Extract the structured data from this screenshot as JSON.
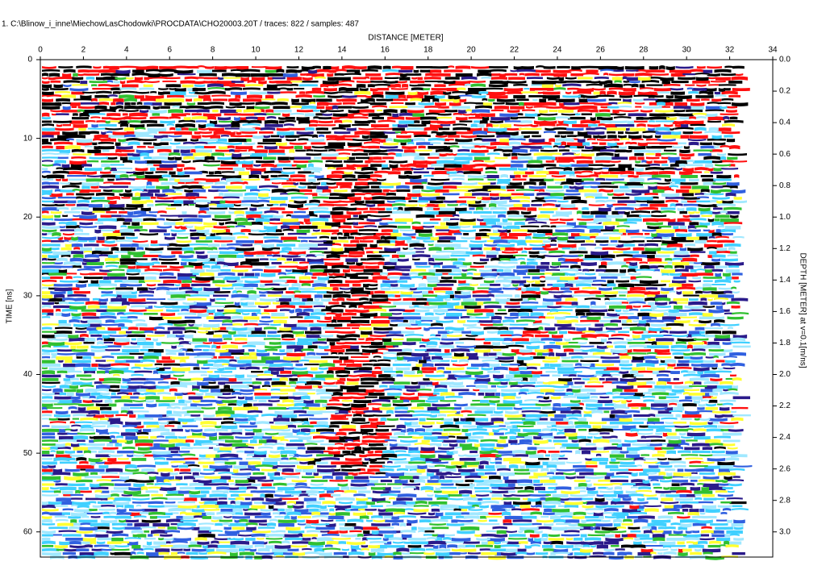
{
  "chart_data": {
    "type": "radargram",
    "title": "1. C:\\Blinow_i_inne\\MiechowLasChodowki\\PROCDATA\\CHO20003.20T / traces: 822 / samples: 487",
    "xlabel": "DISTANCE [METER]",
    "ylabel": "TIME [ns]",
    "y2label": "DEPTH [METER] at v=0.1[m/ns]",
    "xlim": [
      0,
      34
    ],
    "xticks": [
      0,
      2,
      4,
      6,
      8,
      10,
      12,
      14,
      16,
      18,
      20,
      22,
      24,
      26,
      28,
      30,
      32,
      34
    ],
    "ylim": [
      0,
      63.2
    ],
    "yticks": [
      0,
      10,
      20,
      30,
      40,
      50,
      60
    ],
    "y2lim": [
      0,
      3.16
    ],
    "y2ticks": [
      {
        "value": 0,
        "label": "0.0"
      },
      0.2,
      0.4,
      0.6,
      0.8,
      {
        "value": 1,
        "label": "1.0"
      },
      1.2,
      1.4,
      1.6,
      1.8,
      {
        "value": 2,
        "label": "2.0"
      },
      2.2,
      2.4,
      2.6,
      2.8,
      {
        "value": 3,
        "label": "3.0"
      }
    ]
  }
}
